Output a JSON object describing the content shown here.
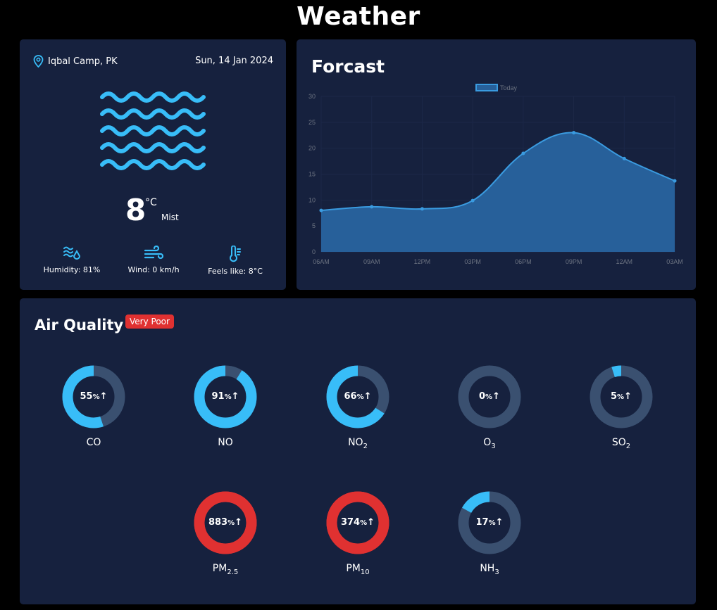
{
  "app_title": "Weather",
  "current": {
    "location": "Iqbal Camp, PK",
    "date": "Sun, 14 Jan 2024",
    "temp": "8",
    "unit": "°C",
    "condition": "Mist",
    "humidity": "Humidity: 81%",
    "wind": "Wind: 0 km/h",
    "feels": "Feels like: 8°C"
  },
  "forecast": {
    "title": "Forcast",
    "chart_data": {
      "type": "area",
      "series": [
        {
          "name": "Today",
          "values": [
            8,
            8.7,
            8.3,
            9.9,
            19,
            23,
            18,
            13.7
          ]
        }
      ],
      "categories": [
        "06AM",
        "09AM",
        "12PM",
        "03PM",
        "06PM",
        "09PM",
        "12AM",
        "03AM"
      ],
      "ylim": [
        0,
        30
      ],
      "yticks": [
        0,
        5,
        10,
        15,
        20,
        25,
        30
      ],
      "legend": "top-center",
      "grid": true
    }
  },
  "air_quality": {
    "title": "Air Quality",
    "badge": "Very Poor",
    "colors": {
      "good": "#38bdf8",
      "bad": "#e03131",
      "track": "#3a5070"
    },
    "items": [
      {
        "name": "CO",
        "sub": "",
        "pct": 55,
        "label": "55",
        "danger": false
      },
      {
        "name": "NO",
        "sub": "",
        "pct": 91,
        "label": "91",
        "danger": false
      },
      {
        "name": "NO",
        "sub": "2",
        "pct": 66,
        "label": "66",
        "danger": false
      },
      {
        "name": "O",
        "sub": "3",
        "pct": 0,
        "label": "0",
        "danger": false
      },
      {
        "name": "SO",
        "sub": "2",
        "pct": 5,
        "label": "5",
        "danger": false
      },
      {
        "name": "PM",
        "sub": "2.5",
        "pct": 100,
        "label": "883",
        "danger": true
      },
      {
        "name": "PM",
        "sub": "10",
        "pct": 100,
        "label": "374",
        "danger": true
      },
      {
        "name": "NH",
        "sub": "3",
        "pct": 17,
        "label": "17",
        "danger": false
      }
    ],
    "pct_unit": "%",
    "arrow": "↑"
  }
}
